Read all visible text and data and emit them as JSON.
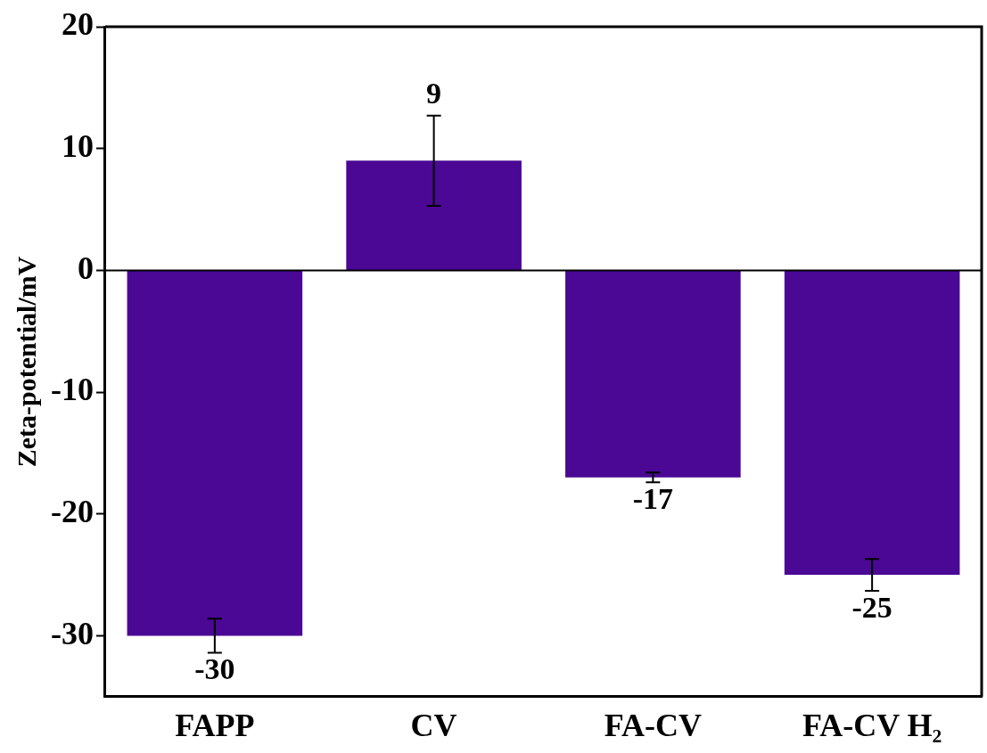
{
  "chart_data": {
    "type": "bar",
    "ylabel": "Zeta-potential/mV",
    "categories": [
      "FAPP",
      "CV",
      "FA-CV",
      "FA-CV H₂"
    ],
    "values": [
      -30,
      9,
      -17,
      -25
    ],
    "errors": [
      1.4,
      3.7,
      0.4,
      1.3
    ],
    "value_labels": [
      "-30",
      "9",
      "-17",
      "-25"
    ],
    "color": "#4a0894",
    "ylim": [
      -35,
      20
    ],
    "yticks": [
      -30,
      -20,
      -10,
      0,
      10,
      20
    ],
    "ref_lines": [
      {
        "axis": "y",
        "value": 0
      }
    ],
    "grid": false,
    "legend": false
  }
}
